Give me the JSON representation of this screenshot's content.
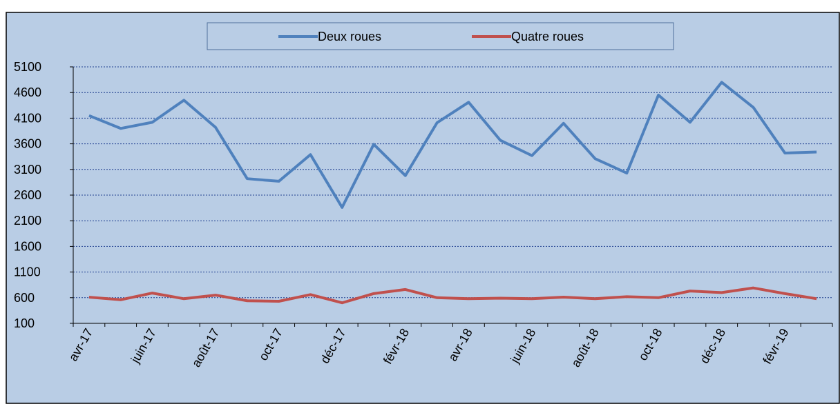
{
  "chart_data": {
    "type": "line",
    "categories": [
      "avr-17",
      null,
      "juin-17",
      null,
      "août-17",
      null,
      "oct-17",
      null,
      "déc-17",
      null,
      "févr-18",
      null,
      "avr-18",
      null,
      "juin-18",
      null,
      "août-18",
      null,
      "oct-18",
      null,
      "déc-18",
      null,
      "févr-19",
      null
    ],
    "series": [
      {
        "name": "Deux roues",
        "color": "#4f81bd",
        "values": [
          4150,
          3900,
          4020,
          4450,
          3920,
          2920,
          2870,
          3390,
          2360,
          3590,
          2980,
          4010,
          4410,
          3670,
          3370,
          4000,
          3310,
          3030,
          4550,
          4020,
          4800,
          4310,
          3420,
          3440
        ]
      },
      {
        "name": "Quatre roues",
        "color": "#c0504d",
        "values": [
          610,
          560,
          690,
          580,
          650,
          540,
          530,
          660,
          500,
          680,
          760,
          600,
          580,
          590,
          580,
          610,
          580,
          620,
          600,
          730,
          700,
          790,
          680,
          580
        ]
      }
    ],
    "ylim": [
      100,
      5100
    ],
    "yticks": [
      100,
      600,
      1100,
      1600,
      2100,
      2600,
      3100,
      3600,
      4100,
      4600,
      5100
    ],
    "grid": true,
    "legend": "top"
  }
}
